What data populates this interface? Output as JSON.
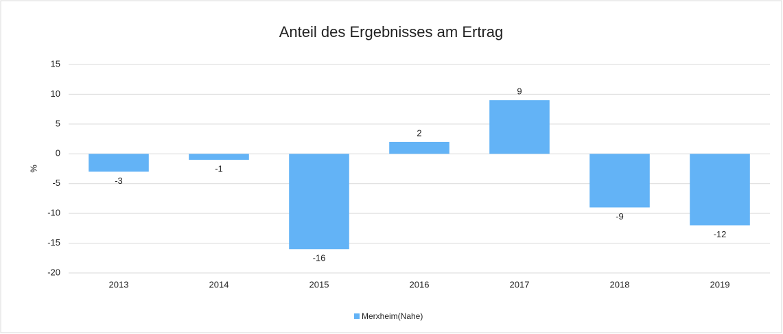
{
  "chart_data": {
    "type": "bar",
    "title": "Anteil des Ergebnisses am Ertrag",
    "y_label": "%",
    "categories": [
      "2013",
      "2014",
      "2015",
      "2016",
      "2017",
      "2018",
      "2019"
    ],
    "series": [
      {
        "name": "Merxheim(Nahe)",
        "color": "#63b3f6",
        "values": [
          -3,
          -1,
          -16,
          2,
          9,
          -9,
          -12
        ]
      }
    ],
    "ylim": [
      -20,
      15
    ],
    "yticks": [
      -20,
      -15,
      -10,
      -5,
      0,
      5,
      10,
      15
    ],
    "grid": true,
    "legend": "bottom"
  }
}
